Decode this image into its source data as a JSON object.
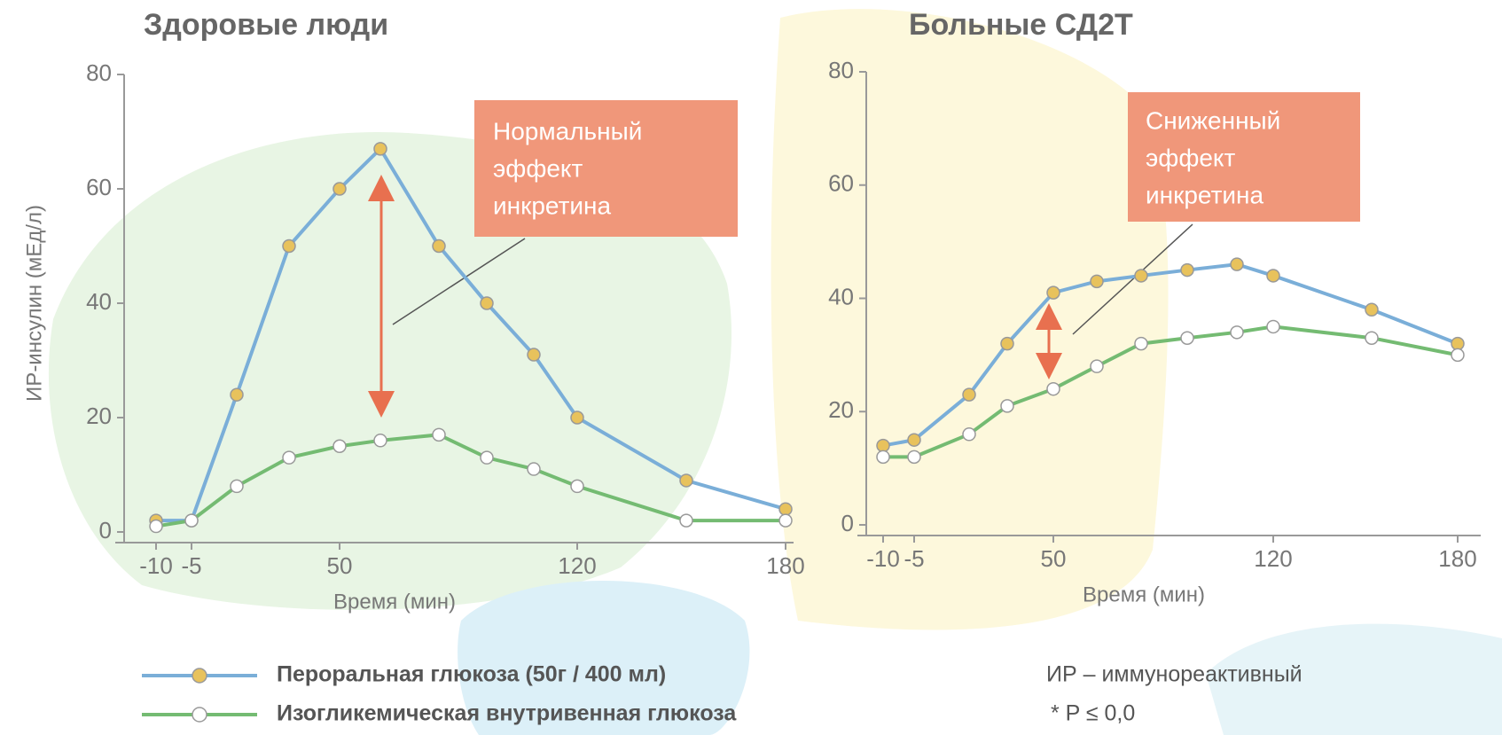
{
  "chart_data": [
    {
      "type": "line",
      "title": "Здоровые люди",
      "y_label": "ИР-инсулин (мЕд/л)",
      "x_label": "Время (мин)",
      "categories": [
        "-10",
        "-5",
        null,
        null,
        "50",
        null,
        null,
        null,
        null,
        "120",
        null,
        "180"
      ],
      "ylim": [
        0,
        80
      ],
      "yticks": [
        0,
        20,
        40,
        60,
        80
      ],
      "annotation": [
        "Нормальный",
        "эффект",
        "инкретина"
      ],
      "series": [
        {
          "name": "Пероральная глюкоза (50г / 400 мл)",
          "color": "#7aaed8",
          "marker_color": "#e8c25c",
          "values": [
            2,
            2,
            24,
            50,
            60,
            67,
            50,
            40,
            31,
            20,
            9,
            4
          ]
        },
        {
          "name": "Изогликемическая внутривенная глюкоза",
          "color": "#74bb72",
          "marker_color": "#ffffff",
          "values": [
            1,
            2,
            8,
            13,
            15,
            16,
            17,
            13,
            11,
            8,
            2,
            2
          ]
        }
      ]
    },
    {
      "type": "line",
      "title": "Больные СД2Т",
      "x_label": "Время (мин)",
      "categories": [
        "-10",
        "-5",
        null,
        null,
        "50",
        null,
        null,
        null,
        null,
        "120",
        null,
        "180"
      ],
      "ylim": [
        0,
        80
      ],
      "yticks": [
        0,
        20,
        40,
        60,
        80
      ],
      "annotation": [
        "Сниженный",
        "эффект",
        "инкретина"
      ],
      "series": [
        {
          "color": "#7aaed8",
          "marker_color": "#e8c25c",
          "values": [
            14,
            15,
            23,
            32,
            41,
            43,
            44,
            45,
            46,
            44,
            38,
            32
          ]
        },
        {
          "color": "#74bb72",
          "marker_color": "#ffffff",
          "values": [
            12,
            12,
            16,
            21,
            24,
            28,
            32,
            33,
            34,
            35,
            33,
            30
          ]
        }
      ]
    }
  ],
  "notes": [
    "ИР – иммунореактивный",
    "*  P ≤ 0,0"
  ]
}
